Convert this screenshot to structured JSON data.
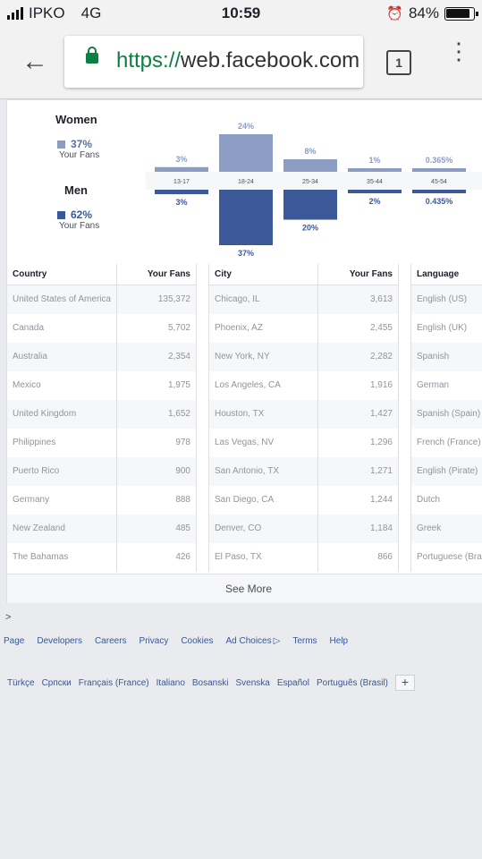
{
  "status_bar": {
    "carrier": "IPKO",
    "network": "4G",
    "time": "10:59",
    "battery": "84%"
  },
  "browser": {
    "url_scheme": "https://",
    "url_host": "web.facebook.com",
    "tab_count": "1"
  },
  "demographics": {
    "women": {
      "label": "Women",
      "pct": "37%",
      "sub": "Your Fans",
      "color": "#8b9dc3"
    },
    "men": {
      "label": "Men",
      "pct": "62%",
      "sub": "Your Fans",
      "color": "#3b5998"
    }
  },
  "chart_data": {
    "type": "bar",
    "categories": [
      "13-17",
      "18-24",
      "25-34",
      "35-44",
      "45-54"
    ],
    "series": [
      {
        "name": "Women",
        "values": [
          3,
          24,
          8,
          1,
          0.365
        ],
        "labels": [
          "3%",
          "24%",
          "8%",
          "1%",
          "0.365%"
        ]
      },
      {
        "name": "Men",
        "values": [
          3,
          37,
          20,
          2,
          0.435
        ],
        "labels": [
          "3%",
          "37%",
          "20%",
          "2%",
          "0.435%"
        ]
      }
    ],
    "ylim": [
      0,
      37
    ]
  },
  "tables": {
    "country": {
      "header": [
        "Country",
        "Your Fans"
      ],
      "rows": [
        [
          "United States of America",
          "135,372"
        ],
        [
          "Canada",
          "5,702"
        ],
        [
          "Australia",
          "2,354"
        ],
        [
          "Mexico",
          "1,975"
        ],
        [
          "United Kingdom",
          "1,652"
        ],
        [
          "Philippines",
          "978"
        ],
        [
          "Puerto Rico",
          "900"
        ],
        [
          "Germany",
          "888"
        ],
        [
          "New Zealand",
          "485"
        ],
        [
          "The Bahamas",
          "426"
        ]
      ]
    },
    "city": {
      "header": [
        "City",
        "Your Fans"
      ],
      "rows": [
        [
          "Chicago, IL",
          "3,613"
        ],
        [
          "Phoenix, AZ",
          "2,455"
        ],
        [
          "New York, NY",
          "2,282"
        ],
        [
          "Los Angeles, CA",
          "1,916"
        ],
        [
          "Houston, TX",
          "1,427"
        ],
        [
          "Las Vegas, NV",
          "1,296"
        ],
        [
          "San Antonio, TX",
          "1,271"
        ],
        [
          "San Diego, CA",
          "1,244"
        ],
        [
          "Denver, CO",
          "1,184"
        ],
        [
          "El Paso, TX",
          "866"
        ]
      ]
    },
    "language": {
      "header": [
        "Language"
      ],
      "rows": [
        [
          "English (US)"
        ],
        [
          "English (UK)"
        ],
        [
          "Spanish"
        ],
        [
          "German"
        ],
        [
          "Spanish (Spain)"
        ],
        [
          "French (France)"
        ],
        [
          "English (Pirate)"
        ],
        [
          "Dutch"
        ],
        [
          "Greek"
        ],
        [
          "Portuguese (Braz"
        ]
      ]
    }
  },
  "see_more": "See More",
  "breadcrumb_arrow": ">",
  "footer_links": [
    "Page",
    "Developers",
    "Careers",
    "Privacy",
    "Cookies",
    "Ad Choices",
    "Terms",
    "Help"
  ],
  "languages": [
    "Türkçe",
    "Српски",
    "Français (France)",
    "Italiano",
    "Bosanski",
    "Svenska",
    "Español",
    "Português (Brasil)"
  ],
  "plus_label": "+"
}
